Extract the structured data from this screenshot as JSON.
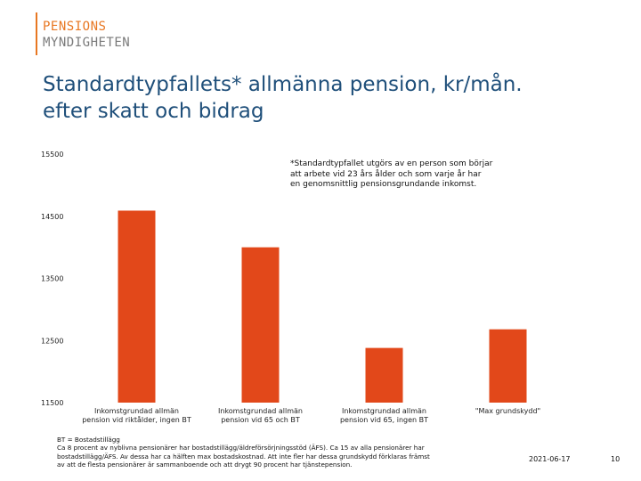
{
  "logo": {
    "line1": "PENSIONS",
    "line2": "MYNDIGHETEN",
    "accent": "#e87722"
  },
  "title": {
    "line1": "Standardtypfallets* allmänna pension, kr/mån.",
    "line2": "efter skatt och bidrag"
  },
  "note": {
    "line1": "*Standardtypfallet utgörs av en person som börjar",
    "line2": "att arbete vid 23 års ålder och som varje år har",
    "line3": "en genomsnittlig pensionsgrundande inkomst."
  },
  "chart_data": {
    "type": "bar",
    "categories": [
      [
        "Inkomstgrundad allmän",
        "pension vid riktålder, ingen BT"
      ],
      [
        "Inkomstgrundad allmän",
        "pension vid 65 och BT"
      ],
      [
        "Inkomstgrundad allmän",
        "pension vid 65, ingen BT"
      ],
      [
        "\"Max grundskydd\""
      ]
    ],
    "values": [
      14590,
      14000,
      12380,
      12680
    ],
    "yticks": [
      15500,
      14500,
      13500,
      12500,
      11500
    ],
    "ylim": [
      11500,
      15500
    ],
    "bar_color": "#e2481a",
    "grid": false
  },
  "footnote": {
    "line1": "BT = Bostadstillägg",
    "line2": "Ca 8 procent av nyblivna pensionärer har bostadstillägg/äldreförsörjningsstöd (ÄFS). Ca 15 av alla pensionärer har",
    "line3": "bostadstillägg/ÄFS. Av dessa har ca hälften max bostadskostnad. Att inte fler har dessa grundskydd förklaras främst",
    "line4": "av att de flesta pensionärer är sammanboende och att drygt 90 procent har tjänstepension."
  },
  "date": "2021-06-17",
  "page_number": "10"
}
